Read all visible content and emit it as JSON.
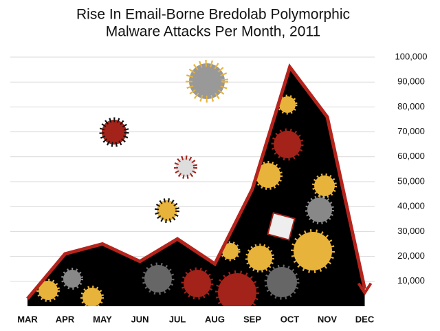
{
  "chart_data": {
    "type": "area",
    "title": [
      "Rise In Email-Borne Bredolab Polymorphic",
      "Malware Attacks Per Month, 2011"
    ],
    "categories": [
      "MAR",
      "APR",
      "MAY",
      "JUN",
      "JUL",
      "AUG",
      "SEP",
      "OCT",
      "NOV",
      "DEC"
    ],
    "values": [
      3000,
      21000,
      25000,
      18000,
      27000,
      17000,
      47000,
      96000,
      76000,
      7000
    ],
    "color": "#000000",
    "line_color": "#b5241c",
    "ylim": [
      0,
      100000
    ],
    "yticks": [
      {
        "value": 10000,
        "label": "10,000"
      },
      {
        "value": 20000,
        "label": "20,000"
      },
      {
        "value": 30000,
        "label": "30,000"
      },
      {
        "value": 40000,
        "label": "40,000"
      },
      {
        "value": 50000,
        "label": "50,000"
      },
      {
        "value": 60000,
        "label": "60,000"
      },
      {
        "value": 70000,
        "label": "70,000"
      },
      {
        "value": 80000,
        "label": "80,000"
      },
      {
        "value": 90000,
        "label": "90,000"
      },
      {
        "value": 100000,
        "label": "100,000"
      }
    ],
    "grid": true
  }
}
